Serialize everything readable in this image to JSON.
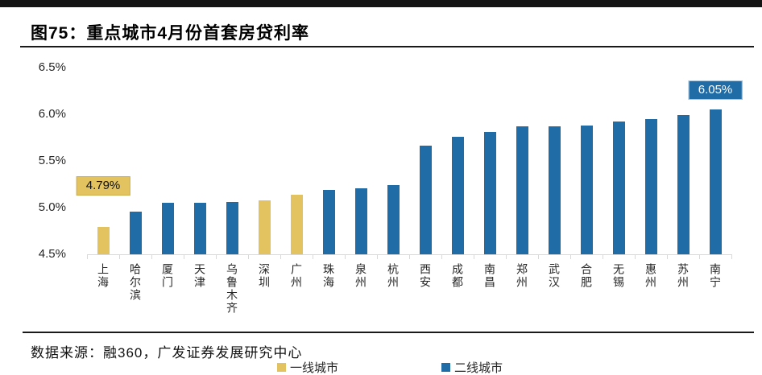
{
  "figure": {
    "title": "图75：重点城市4月份首套房贷利率",
    "source": "数据来源：融360，广发证券发展研究中心"
  },
  "chart_data": {
    "type": "bar",
    "title": "图75：重点城市4月份首套房贷利率",
    "xlabel": "",
    "ylabel": "",
    "ylim": [
      4.5,
      6.5
    ],
    "yticks": [
      4.5,
      5.0,
      5.5,
      6.0,
      6.5
    ],
    "ytick_suffix": "%",
    "grid": false,
    "legend_position": "bottom",
    "legend": [
      {
        "name": "一线城市",
        "color": "#E2C35F"
      },
      {
        "name": "二线城市",
        "color": "#1F6CA7"
      }
    ],
    "bars": [
      {
        "label": "上海",
        "value": 4.79,
        "series": "一线城市"
      },
      {
        "label": "哈尔滨",
        "value": 4.96,
        "series": "二线城市"
      },
      {
        "label": "厦门",
        "value": 5.05,
        "series": "二线城市"
      },
      {
        "label": "天津",
        "value": 5.05,
        "series": "二线城市"
      },
      {
        "label": "乌鲁木齐",
        "value": 5.06,
        "series": "二线城市"
      },
      {
        "label": "深圳",
        "value": 5.08,
        "series": "一线城市"
      },
      {
        "label": "广州",
        "value": 5.14,
        "series": "一线城市"
      },
      {
        "label": "珠海",
        "value": 5.19,
        "series": "二线城市"
      },
      {
        "label": "泉州",
        "value": 5.21,
        "series": "二线城市"
      },
      {
        "label": "杭州",
        "value": 5.24,
        "series": "二线城市"
      },
      {
        "label": "西安",
        "value": 5.66,
        "series": "二线城市"
      },
      {
        "label": "成都",
        "value": 5.76,
        "series": "二线城市"
      },
      {
        "label": "南昌",
        "value": 5.81,
        "series": "二线城市"
      },
      {
        "label": "郑州",
        "value": 5.87,
        "series": "二线城市"
      },
      {
        "label": "武汉",
        "value": 5.87,
        "series": "二线城市"
      },
      {
        "label": "合肥",
        "value": 5.88,
        "series": "二线城市"
      },
      {
        "label": "无锡",
        "value": 5.92,
        "series": "二线城市"
      },
      {
        "label": "惠州",
        "value": 5.95,
        "series": "二线城市"
      },
      {
        "label": "苏州",
        "value": 5.99,
        "series": "二线城市"
      },
      {
        "label": "南宁",
        "value": 6.05,
        "series": "二线城市"
      }
    ],
    "annotations": [
      {
        "bar": "上海",
        "text": "4.79%",
        "style": "first-tier"
      },
      {
        "bar": "南宁",
        "text": "6.05%",
        "style": "second-tier"
      }
    ]
  }
}
